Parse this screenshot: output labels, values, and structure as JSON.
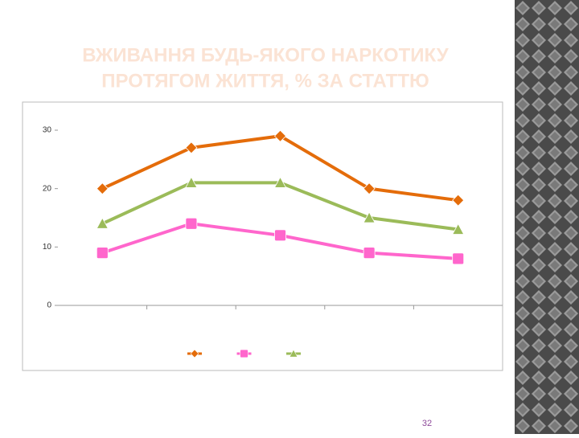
{
  "title": [
    "ВЖИВАННЯ БУДЬ-ЯКОГО НАРКОТИКУ",
    "ПРОТЯГОМ ЖИТТЯ, % ЗА СТАТТЮ"
  ],
  "page_number": "32",
  "chart_data": {
    "type": "line",
    "categories": [
      null,
      null,
      null,
      null,
      null
    ],
    "series": [
      {
        "color": "#e46c0a",
        "marker": "diamond",
        "values": [
          20,
          27,
          29,
          20,
          18
        ]
      },
      {
        "color": "#ff66cc",
        "marker": "square",
        "values": [
          9,
          14,
          12,
          9,
          8
        ]
      },
      {
        "color": "#9bbb59",
        "marker": "triangle",
        "values": [
          14,
          21,
          21,
          15,
          13
        ]
      }
    ],
    "ylim": [
      0,
      30
    ],
    "yticks": [
      0,
      10,
      20,
      30
    ]
  }
}
